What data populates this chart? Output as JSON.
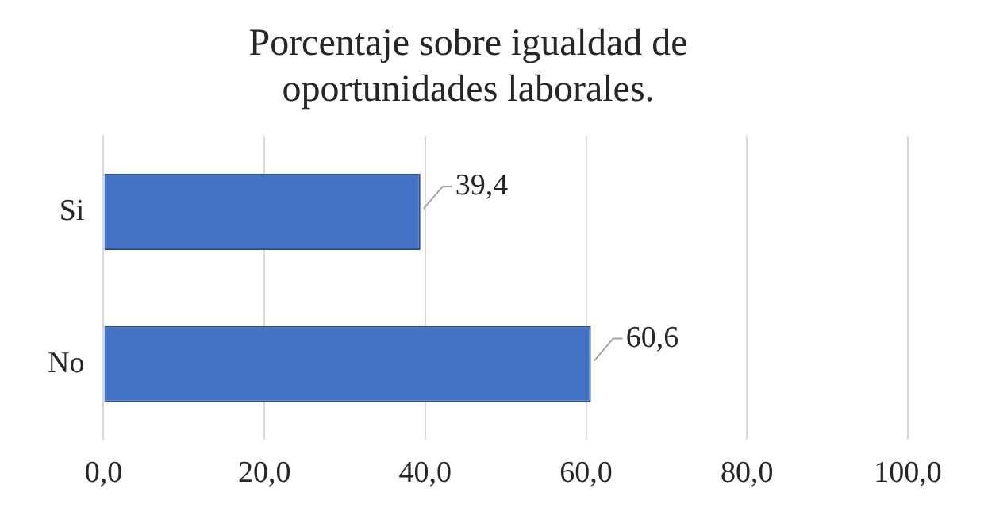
{
  "chart_data": {
    "type": "bar",
    "orientation": "horizontal",
    "title": "Porcentaje sobre igualdad de oportunidades laborales.",
    "categories": [
      "Si",
      "No"
    ],
    "values": [
      39.4,
      60.6
    ],
    "color": "#4472c4",
    "value_labels": [
      "39,4",
      "60,6"
    ],
    "xlim": [
      0,
      100
    ],
    "xticks": [
      {
        "value": 0,
        "label": "0,0"
      },
      {
        "value": 20,
        "label": "20,0"
      },
      {
        "value": 40,
        "label": "40,0"
      },
      {
        "value": 60,
        "label": "60,0"
      },
      {
        "value": 80,
        "label": "80,0"
      },
      {
        "value": 100,
        "label": "100,0"
      }
    ],
    "grid": "x",
    "legend": false
  }
}
